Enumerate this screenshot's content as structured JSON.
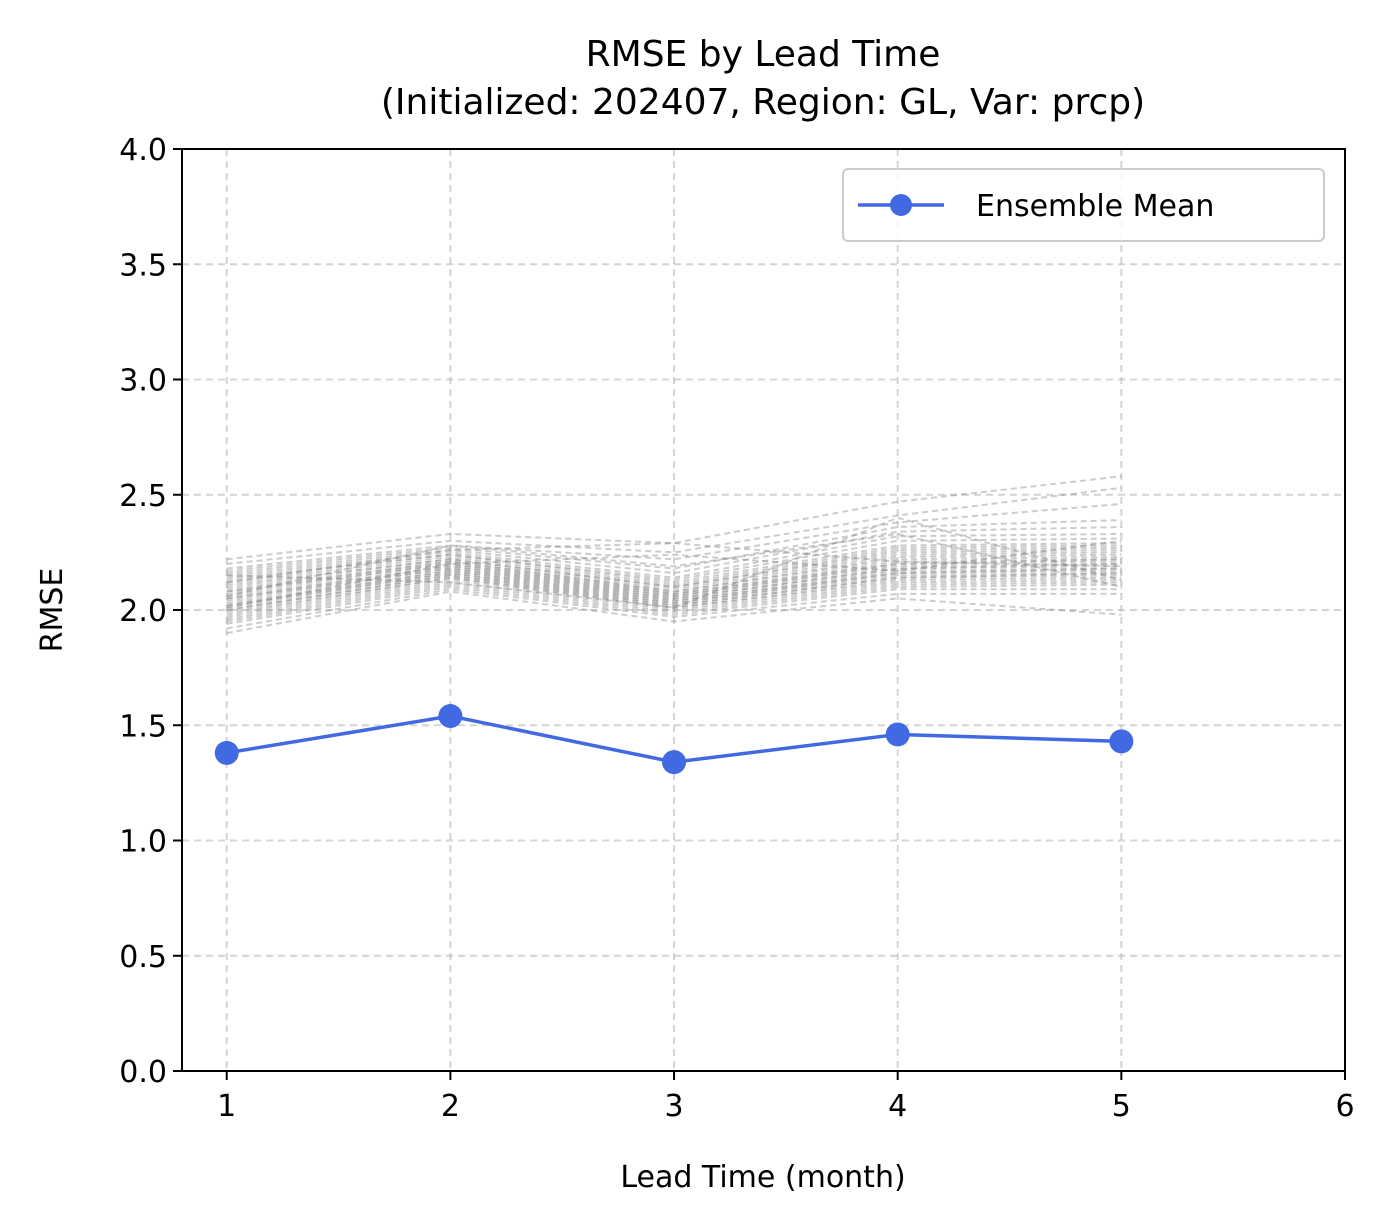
{
  "chart_data": {
    "type": "line",
    "title_line1": "RMSE by Lead Time",
    "title_line2": "(Initialized: 202407, Region: GL, Var: prcp)",
    "xlabel": "Lead Time (month)",
    "ylabel": "RMSE",
    "xlim": [
      0.8,
      6
    ],
    "ylim": [
      0,
      4
    ],
    "x_ticks": [
      "1",
      "2",
      "3",
      "4",
      "5",
      "6"
    ],
    "y_ticks": [
      "0.0",
      "0.5",
      "1.0",
      "1.5",
      "2.0",
      "2.5",
      "3.0",
      "3.5",
      "4.0"
    ],
    "grid": true,
    "legend_position": "top-right",
    "x": [
      1,
      2,
      3,
      4,
      5
    ],
    "series": [
      {
        "name": "Ensemble Mean",
        "values": [
          1.38,
          1.54,
          1.34,
          1.46,
          1.43
        ],
        "color": "#4169e1",
        "style": "solid line with circle markers"
      }
    ],
    "members": {
      "color": "#808080",
      "style": "dashed, semi-transparent",
      "values": [
        [
          2.22,
          2.33,
          2.29,
          2.47,
          2.58
        ],
        [
          2.2,
          2.3,
          2.25,
          2.41,
          2.53
        ],
        [
          2.18,
          2.28,
          2.22,
          2.38,
          2.46
        ],
        [
          2.17,
          2.27,
          2.18,
          2.36,
          2.39
        ],
        [
          2.16,
          2.26,
          2.16,
          2.34,
          2.36
        ],
        [
          2.15,
          2.25,
          2.14,
          2.32,
          2.33
        ],
        [
          2.14,
          2.24,
          2.13,
          2.3,
          2.31
        ],
        [
          2.13,
          2.24,
          2.12,
          2.28,
          2.29
        ],
        [
          2.12,
          2.23,
          2.11,
          2.27,
          2.28
        ],
        [
          2.11,
          2.22,
          2.1,
          2.26,
          2.27
        ],
        [
          2.1,
          2.22,
          2.1,
          2.25,
          2.26
        ],
        [
          2.09,
          2.21,
          2.09,
          2.24,
          2.25
        ],
        [
          2.08,
          2.21,
          2.08,
          2.23,
          2.24
        ],
        [
          2.08,
          2.2,
          2.08,
          2.22,
          2.23
        ],
        [
          2.07,
          2.2,
          2.07,
          2.21,
          2.22
        ],
        [
          2.06,
          2.19,
          2.07,
          2.2,
          2.22
        ],
        [
          2.05,
          2.19,
          2.06,
          2.2,
          2.21
        ],
        [
          2.05,
          2.18,
          2.06,
          2.19,
          2.2
        ],
        [
          2.04,
          2.18,
          2.05,
          2.18,
          2.2
        ],
        [
          2.03,
          2.17,
          2.05,
          2.18,
          2.19
        ],
        [
          2.02,
          2.17,
          2.04,
          2.17,
          2.18
        ],
        [
          2.02,
          2.16,
          2.04,
          2.16,
          2.18
        ],
        [
          2.01,
          2.16,
          2.03,
          2.16,
          2.17
        ],
        [
          2.0,
          2.15,
          2.03,
          2.15,
          2.16
        ],
        [
          2.0,
          2.15,
          2.02,
          2.14,
          2.16
        ],
        [
          1.99,
          2.14,
          2.02,
          2.14,
          2.15
        ],
        [
          1.98,
          2.14,
          2.01,
          2.13,
          2.14
        ],
        [
          1.97,
          2.13,
          2.01,
          2.12,
          2.13
        ],
        [
          1.96,
          2.12,
          2.0,
          2.11,
          2.12
        ],
        [
          1.95,
          2.11,
          1.99,
          2.1,
          2.11
        ],
        [
          1.94,
          2.1,
          1.98,
          2.09,
          2.09
        ],
        [
          1.92,
          2.09,
          1.97,
          2.07,
          2.07
        ],
        [
          1.9,
          2.08,
          1.95,
          2.05,
          1.98
        ],
        [
          2.12,
          2.26,
          2.29,
          2.21,
          2.19
        ],
        [
          2.06,
          2.28,
          2.19,
          2.33,
          2.1
        ],
        [
          2.01,
          2.2,
          2.24,
          2.17,
          2.3
        ],
        [
          2.15,
          2.12,
          2.01,
          2.4,
          2.13
        ]
      ]
    }
  }
}
